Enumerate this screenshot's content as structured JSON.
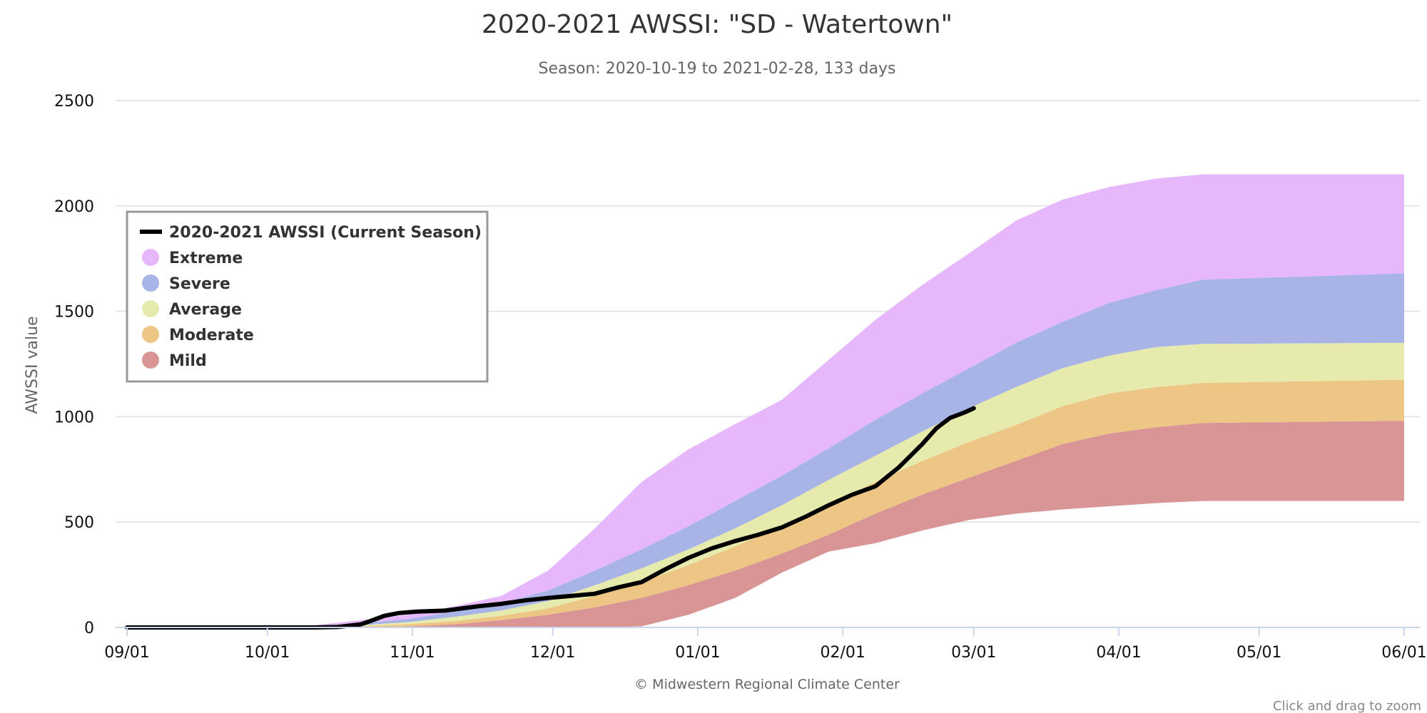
{
  "chart_data": {
    "type": "area",
    "title": "2020-2021 AWSSI: \"SD - Watertown\"",
    "subtitle": "Season: 2020-10-19 to 2021-02-28, 133 days",
    "xlabel": "",
    "ylabel": "AWSSI value",
    "ylim": [
      0,
      2500
    ],
    "yticks": [
      0,
      500,
      1000,
      1500,
      2000,
      2500
    ],
    "x_unit": "days since 09/01",
    "xlim": [
      0,
      273
    ],
    "xticks": [
      {
        "day": 0,
        "label": "09/01"
      },
      {
        "day": 30,
        "label": "10/01"
      },
      {
        "day": 61,
        "label": "11/01"
      },
      {
        "day": 91,
        "label": "12/01"
      },
      {
        "day": 122,
        "label": "01/01"
      },
      {
        "day": 153,
        "label": "02/01"
      },
      {
        "day": 181,
        "label": "03/01"
      },
      {
        "day": 212,
        "label": "04/01"
      },
      {
        "day": 242,
        "label": "05/01"
      },
      {
        "day": 273,
        "label": "06/01"
      }
    ],
    "grid": true,
    "legend_position": "top-left",
    "credit": "© Midwestern Regional Climate Center",
    "zoom_hint": "Click and drag to zoom",
    "band_days": [
      0,
      30,
      40,
      50,
      60,
      70,
      80,
      90,
      100,
      110,
      120,
      130,
      140,
      150,
      160,
      170,
      180,
      190,
      200,
      210,
      220,
      230,
      273
    ],
    "bands": [
      {
        "name": "Extreme",
        "color": "#e6b8fb",
        "upper": [
          0,
          0,
          10,
          35,
          60,
          100,
          150,
          270,
          470,
          690,
          845,
          965,
          1080,
          1270,
          1460,
          1625,
          1775,
          1930,
          2030,
          2090,
          2130,
          2150,
          2150
        ]
      },
      {
        "name": "Severe",
        "color": "#a8b3e6",
        "upper": [
          0,
          0,
          5,
          20,
          40,
          75,
          115,
          175,
          270,
          370,
          480,
          600,
          720,
          850,
          985,
          1110,
          1230,
          1350,
          1450,
          1540,
          1600,
          1650,
          1680
        ]
      },
      {
        "name": "Average",
        "color": "#e6ebad",
        "upper": [
          0,
          0,
          2,
          10,
          25,
          50,
          80,
          125,
          200,
          280,
          370,
          470,
          580,
          700,
          815,
          930,
          1040,
          1140,
          1230,
          1290,
          1330,
          1345,
          1350
        ]
      },
      {
        "name": "Moderate",
        "color": "#edc584",
        "upper": [
          0,
          0,
          0,
          5,
          15,
          30,
          55,
          90,
          150,
          215,
          295,
          385,
          480,
          580,
          690,
          790,
          880,
          960,
          1050,
          1110,
          1140,
          1160,
          1175
        ]
      },
      {
        "name": "Mild",
        "color": "#d99595",
        "upper": [
          0,
          0,
          0,
          0,
          5,
          15,
          35,
          60,
          95,
          140,
          200,
          270,
          350,
          440,
          540,
          630,
          710,
          790,
          870,
          920,
          950,
          970,
          980
        ],
        "lower": [
          0,
          0,
          0,
          0,
          0,
          0,
          0,
          0,
          0,
          5,
          60,
          140,
          260,
          360,
          400,
          460,
          510,
          540,
          560,
          575,
          590,
          600,
          600
        ]
      }
    ],
    "current_season": {
      "name": "2020-2021 AWSSI (Current Season)",
      "color": "#000000",
      "days": [
        0,
        10,
        20,
        30,
        40,
        45,
        50,
        52,
        55,
        58,
        62,
        68,
        75,
        80,
        85,
        90,
        95,
        100,
        105,
        110,
        115,
        120,
        125,
        130,
        135,
        140,
        145,
        150,
        155,
        160,
        165,
        170,
        173,
        176,
        179,
        181
      ],
      "values": [
        0,
        0,
        0,
        0,
        0,
        2,
        15,
        30,
        55,
        68,
        75,
        80,
        100,
        112,
        128,
        140,
        150,
        160,
        190,
        215,
        275,
        330,
        375,
        410,
        440,
        475,
        525,
        580,
        630,
        670,
        760,
        870,
        945,
        995,
        1020,
        1040
      ]
    }
  }
}
